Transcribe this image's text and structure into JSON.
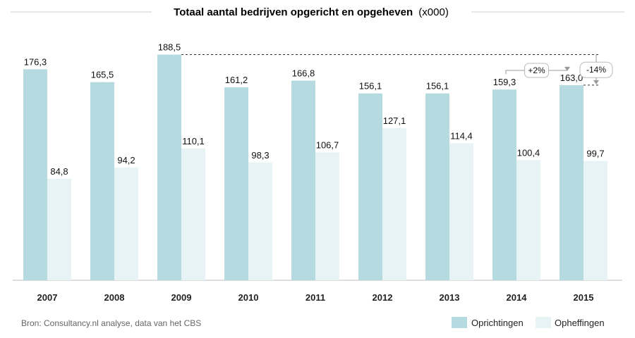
{
  "chart_data": {
    "type": "bar",
    "title_bold": "Totaal aantal bedrijven opgericht en opgeheven",
    "title_suffix": "(x000)",
    "categories": [
      "2007",
      "2008",
      "2009",
      "2010",
      "2011",
      "2012",
      "2013",
      "2014",
      "2015"
    ],
    "series": [
      {
        "name": "Oprichtingen",
        "color": "#b5dbe0",
        "values": [
          176.3,
          165.5,
          188.5,
          161.2,
          166.8,
          156.1,
          156.1,
          159.3,
          163.0
        ],
        "labels": [
          "176,3",
          "165,5",
          "188,5",
          "161,2",
          "166,8",
          "156,1",
          "156,1",
          "159,3",
          "163,0"
        ]
      },
      {
        "name": "Opheffingen",
        "color": "#e7f3f4",
        "values": [
          84.8,
          94.2,
          110.1,
          98.3,
          106.7,
          127.1,
          114.4,
          100.4,
          99.7
        ],
        "labels": [
          "84,8",
          "94,2",
          "110,1",
          "98,3",
          "106,7",
          "127,1",
          "114,4",
          "100,4",
          "99,7"
        ]
      }
    ],
    "ylim": [
      0,
      200
    ],
    "annotations": [
      {
        "text": "+2%",
        "from": "2014",
        "to": "2015",
        "series": "Oprichtingen"
      },
      {
        "text": "-14%",
        "from": "2009",
        "to": "2015",
        "series": "Oprichtingen"
      }
    ],
    "legend_position": "bottom-right",
    "source": "Bron: Consultancy.nl analyse, data van het CBS"
  }
}
